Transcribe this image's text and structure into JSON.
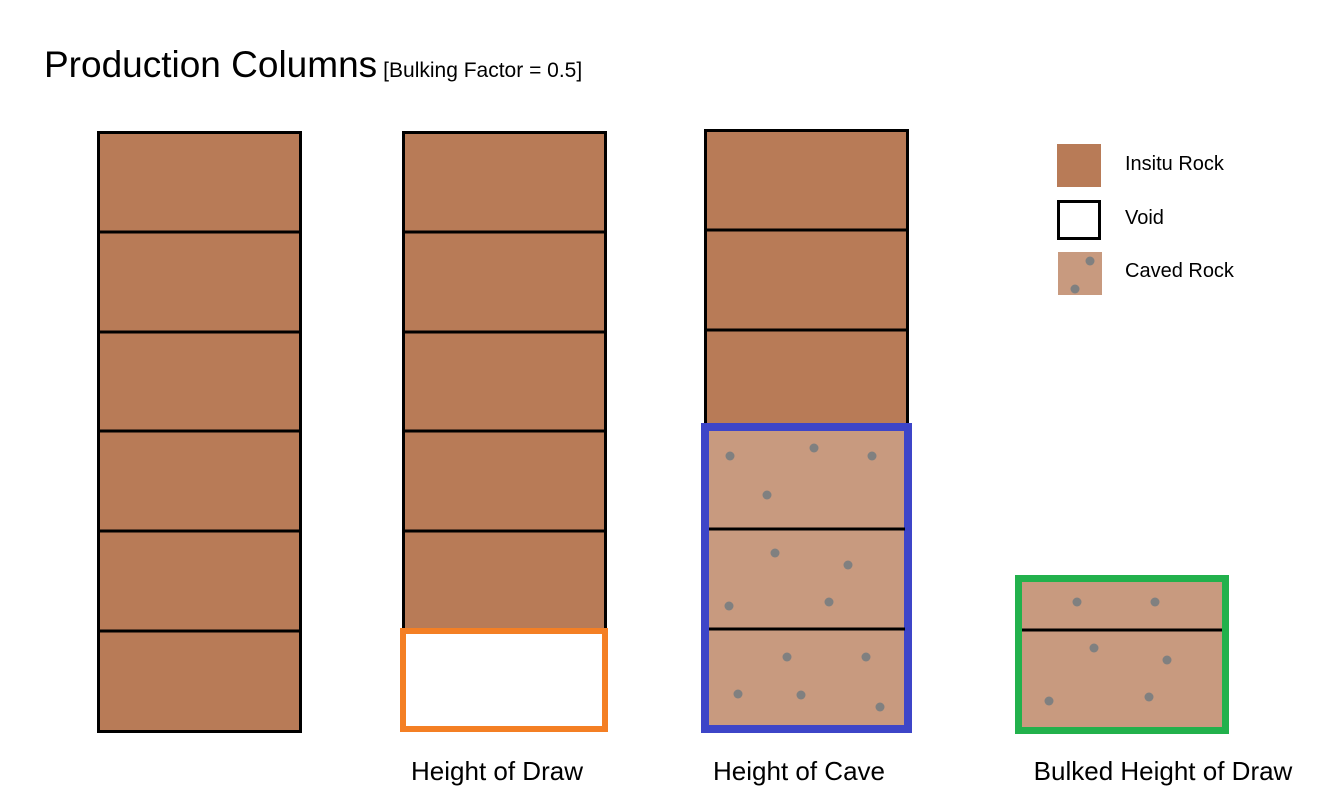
{
  "title": {
    "main": "Production Columns",
    "subtitle": "[Bulking Factor = 0.5]"
  },
  "columns": [
    {
      "label": "",
      "insitu_blocks": 6,
      "void_blocks": 0,
      "caved_blocks": 0
    },
    {
      "label": "Height of Draw",
      "insitu_blocks": 5,
      "void_blocks": 1,
      "caved_blocks": 0,
      "highlight_color": "#f47f24"
    },
    {
      "label": "Height of Cave",
      "insitu_blocks": 3,
      "void_blocks": 0,
      "caved_blocks": 3,
      "highlight_color": "#3d45c8"
    },
    {
      "label": "Bulked Height of Draw",
      "insitu_blocks": 0,
      "void_blocks": 0,
      "caved_blocks": 1.5,
      "highlight_color": "#22b14c"
    }
  ],
  "legend": [
    {
      "label": "Insitu Rock",
      "color": "#b87b57"
    },
    {
      "label": "Void",
      "color": "#ffffff"
    },
    {
      "label": "Caved Rock",
      "color": "#c89a7f",
      "dot_color": "#808080"
    }
  ]
}
